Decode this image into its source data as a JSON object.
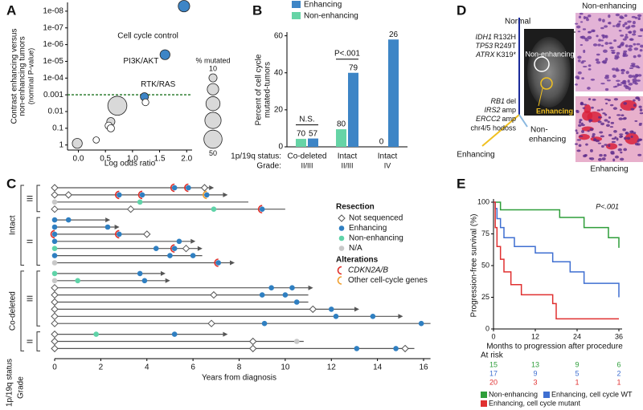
{
  "chart_data": [
    {
      "panel": "A",
      "type": "bubble",
      "ylabel": [
        "Contrast enhancing versus",
        "non-enhancing tumors"
      ],
      "ylabel_note": "(nominal P-value)",
      "xlabel": "Log odds ratio",
      "log_y": true,
      "xlim": [
        -0.2,
        2.1
      ],
      "xticks": [
        {
          "value": 0,
          "label": "0.0"
        },
        {
          "value": 0.5,
          "label": "0.5"
        },
        {
          "value": 1,
          "label": "1.0"
        },
        {
          "value": 1.5,
          "label": "1.5"
        },
        {
          "value": 2,
          "label": "2.0"
        }
      ],
      "ylim": [
        2,
        3e-09
      ],
      "yticks": [
        {
          "value": 1e-08,
          "label": "1e-08"
        },
        {
          "value": 1e-07,
          "label": "1e-07"
        },
        {
          "value": 1e-06,
          "label": "1e-06"
        },
        {
          "value": 1e-05,
          "label": "1e-05"
        },
        {
          "value": 0.0001,
          "label": "1e-04"
        },
        0.001,
        0.01,
        0.1,
        1
      ],
      "threshold": 0.001,
      "threshold_color": "#2e7d32",
      "points": {
        "x": [
          1.95,
          1.6,
          1.22,
          0.72,
          1.24,
          0.6,
          0.56,
          0.6,
          0.33,
          -0.02
        ],
        "values": [
          5e-09,
          4e-06,
          0.0013,
          0.0045,
          0.0028,
          0.04,
          0.07,
          0.1,
          0.5,
          0.8
        ],
        "sizes": [
          20,
          15,
          10,
          55,
          7,
          10,
          8,
          8,
          6,
          15
        ],
        "labels": [
          "Cell cycle control",
          "PI3K/AKT",
          "RTK/RAS",
          null,
          null,
          null,
          null,
          null,
          null,
          null
        ],
        "colors": [
          "#3d85c6",
          "#3d85c6",
          "#3d85c6",
          "#d9d9d9",
          "#ffffff",
          "#d9d9d9",
          "#ffffff",
          "#ffffff",
          "#ffffff",
          "#d9d9d9"
        ]
      },
      "size_legend": {
        "title": "% mutated",
        "values": [
          10,
          20,
          30,
          40,
          50
        ],
        "labels": [
          10,
          null,
          null,
          null,
          50
        ]
      }
    },
    {
      "panel": "B",
      "type": "bar",
      "ylabel": [
        "Percent of cell cycle",
        "mutated-tumors"
      ],
      "categories": [
        "Co-deleted",
        "Intact",
        "Intact"
      ],
      "grades": [
        "II/III",
        "II/III",
        "IV"
      ],
      "row_labels": [
        "1p/19q status:",
        "Grade:"
      ],
      "series": [
        {
          "name": "Enhancing",
          "color": "#3d85c6",
          "values": [
            4.5,
            40,
            58
          ],
          "n": [
            57,
            79,
            26
          ]
        },
        {
          "name": "Non-enhancing",
          "color": "#66d4a6",
          "values": [
            4.3,
            9.5,
            0
          ],
          "n": [
            70,
            80,
            0
          ]
        }
      ],
      "ylim": [
        0,
        62
      ],
      "yticks": [
        0,
        20,
        40,
        60
      ],
      "annotations": [
        {
          "text": "N.S.",
          "category": 0
        },
        {
          "text": "P<.001",
          "category": 1
        }
      ]
    },
    {
      "panel": "C",
      "type": "swimmer",
      "xlabel": "Years from diagnosis",
      "xlim": [
        0,
        16.3
      ],
      "xticks": [
        0,
        2,
        4,
        6,
        8,
        10,
        12,
        14,
        16
      ],
      "axis_labels": [
        "1p/19q status",
        "Grade"
      ],
      "legend": {
        "resection_title": "Resection",
        "resection": [
          "Not sequenced",
          "Enhancing",
          "Non-enhancing",
          "N/A"
        ],
        "status_colors": [
          "#ffffff",
          "#2f7fc1",
          "#5fd3a8",
          "#c8c8c8"
        ],
        "alterations_title": "Alterations",
        "alterations": [
          "CDKN2A/B",
          "Other cell-cycle genes"
        ],
        "alteration_colors": [
          "#e0302a",
          "#f0a030"
        ]
      },
      "status_groups": [
        {
          "status": "Intact",
          "grade_groups": [
            {
              "grade": "III",
              "rows": [
                {
                  "end": 6.7,
                  "arrow": true,
                  "events": [
                    [
                      0,
                      0
                    ],
                    [
                      5.2,
                      1,
                      0
                    ],
                    [
                      5.8,
                      1,
                      0
                    ],
                    [
                      6.5,
                      0
                    ]
                  ]
                },
                {
                  "end": 7.3,
                  "arrow": true,
                  "events": [
                    [
                      0,
                      0
                    ],
                    [
                      0.6,
                      0
                    ],
                    [
                      2.8,
                      1,
                      0
                    ],
                    [
                      3.8,
                      1,
                      0
                    ],
                    [
                      6.6,
                      1,
                      1
                    ]
                  ]
                },
                {
                  "end": 8.4,
                  "arrow": false,
                  "events": [
                    [
                      0,
                      3
                    ],
                    [
                      3.7,
                      2
                    ]
                  ]
                },
                {
                  "end": 10,
                  "arrow": false,
                  "events": [
                    [
                      0,
                      0
                    ],
                    [
                      3.3,
                      0
                    ],
                    [
                      6.9,
                      2
                    ],
                    [
                      9,
                      1,
                      0
                    ]
                  ]
                }
              ]
            },
            {
              "grade": "II",
              "rows": [
                {
                  "end": 2.2,
                  "arrow": true,
                  "events": [
                    [
                      0,
                      1
                    ],
                    [
                      0.6,
                      1
                    ]
                  ]
                },
                {
                  "end": 2.6,
                  "arrow": true,
                  "events": [
                    [
                      0,
                      1
                    ],
                    [
                      2.3,
                      1
                    ]
                  ]
                },
                {
                  "end": 4.1,
                  "arrow": false,
                  "events": [
                    [
                      0,
                      1,
                      0
                    ],
                    [
                      2.8,
                      1,
                      0
                    ],
                    [
                      4,
                      0
                    ]
                  ]
                },
                {
                  "end": 5.9,
                  "arrow": true,
                  "events": [
                    [
                      0,
                      1
                    ],
                    [
                      5.4,
                      1
                    ]
                  ]
                },
                {
                  "end": 6.2,
                  "arrow": true,
                  "events": [
                    [
                      0,
                      2
                    ],
                    [
                      4.4,
                      1
                    ],
                    [
                      5.2,
                      1,
                      0
                    ],
                    [
                      5.7,
                      0
                    ]
                  ]
                },
                {
                  "end": 6.4,
                  "arrow": false,
                  "events": [
                    [
                      0,
                      1
                    ],
                    [
                      5,
                      1
                    ],
                    [
                      6,
                      1
                    ]
                  ]
                },
                {
                  "end": 7.6,
                  "arrow": true,
                  "events": [
                    [
                      0,
                      3
                    ],
                    [
                      7.1,
                      1,
                      0
                    ]
                  ]
                }
              ]
            }
          ]
        },
        {
          "status": "Co-deleted",
          "grade_groups": [
            {
              "grade": "III",
              "rows": [
                {
                  "end": 4.6,
                  "arrow": true,
                  "events": [
                    [
                      0,
                      2
                    ],
                    [
                      3.7,
                      1
                    ]
                  ]
                },
                {
                  "end": 4.8,
                  "arrow": true,
                  "events": [
                    [
                      0,
                      3
                    ],
                    [
                      1,
                      2
                    ],
                    [
                      3.9,
                      1
                    ]
                  ]
                },
                {
                  "end": 11,
                  "arrow": true,
                  "events": [
                    [
                      0,
                      0
                    ],
                    [
                      9.4,
                      1
                    ],
                    [
                      10.3,
                      1
                    ]
                  ]
                },
                {
                  "end": 11,
                  "arrow": false,
                  "events": [
                    [
                      0,
                      0
                    ],
                    [
                      6.9,
                      0
                    ],
                    [
                      9,
                      1
                    ],
                    [
                      10,
                      1
                    ]
                  ]
                },
                {
                  "end": 11,
                  "arrow": false,
                  "events": [
                    [
                      0,
                      0
                    ],
                    [
                      10.5,
                      1
                    ]
                  ]
                },
                {
                  "end": 13,
                  "arrow": true,
                  "events": [
                    [
                      0,
                      0
                    ],
                    [
                      11.2,
                      0
                    ],
                    [
                      12,
                      1
                    ]
                  ]
                },
                {
                  "end": 14.9,
                  "arrow": true,
                  "events": [
                    [
                      0,
                      0
                    ],
                    [
                      12.2,
                      1
                    ],
                    [
                      13.8,
                      1
                    ]
                  ]
                },
                {
                  "end": 16.3,
                  "arrow": false,
                  "events": [
                    [
                      0,
                      0
                    ],
                    [
                      6.8,
                      0
                    ],
                    [
                      9.1,
                      1
                    ],
                    [
                      15.9,
                      1
                    ]
                  ]
                }
              ]
            },
            {
              "grade": "II",
              "rows": [
                {
                  "end": 7.3,
                  "arrow": true,
                  "events": [
                    [
                      0,
                      0
                    ],
                    [
                      1.8,
                      2
                    ],
                    [
                      5.2,
                      1
                    ]
                  ]
                },
                {
                  "end": 10.8,
                  "arrow": false,
                  "events": [
                    [
                      0,
                      0
                    ],
                    [
                      8.6,
                      0
                    ],
                    [
                      10.5,
                      3
                    ]
                  ]
                },
                {
                  "end": 15.6,
                  "arrow": false,
                  "events": [
                    [
                      0,
                      0
                    ],
                    [
                      8.6,
                      0
                    ],
                    [
                      13.1,
                      1
                    ],
                    [
                      14.8,
                      1
                    ],
                    [
                      15.2,
                      0
                    ]
                  ]
                }
              ]
            }
          ]
        }
      ]
    },
    {
      "panel": "E",
      "type": "km",
      "ylabel": "Progression-free survival (%)",
      "xlabel": "Months to progression after procedure",
      "xlim": [
        0,
        36
      ],
      "xticks": [
        0,
        12,
        24,
        36
      ],
      "ylim": [
        0,
        100
      ],
      "yticks": [
        0,
        25,
        50,
        75,
        100
      ],
      "annotation": "P<.001",
      "at_risk_title": "At risk",
      "series": [
        {
          "name": "Non-enhancing",
          "color": "#2e9e3a",
          "x": [
            0,
            2,
            19,
            26,
            33,
            36
          ],
          "values": [
            100,
            94,
            88,
            80,
            72,
            64
          ],
          "at_risk": [
            15,
            13,
            9,
            6
          ]
        },
        {
          "name": "Enhancing, cell cycle WT",
          "color": "#3f6fd1",
          "x": [
            0,
            0.5,
            1,
            2,
            3,
            6,
            12,
            17,
            22,
            26,
            36
          ],
          "values": [
            100,
            95,
            87,
            80,
            72,
            65,
            60,
            53,
            45,
            36,
            25
          ],
          "at_risk": [
            17,
            9,
            5,
            2
          ]
        },
        {
          "name": "Enhancing, cell cycle mutant",
          "color": "#e03030",
          "x": [
            0,
            0.5,
            1,
            2,
            3,
            5,
            8,
            17,
            18,
            36
          ],
          "values": [
            100,
            80,
            65,
            55,
            45,
            35,
            27,
            20,
            8,
            8
          ],
          "at_risk": [
            20,
            3,
            1,
            1
          ]
        }
      ]
    }
  ],
  "diagram": {
    "panel": "D",
    "root": "Normal",
    "trunk_mutations": [
      {
        "gene": "IDH1",
        "change": "R132H"
      },
      {
        "gene": "TP53",
        "change": "R249T"
      },
      {
        "gene": "ATRX",
        "change": "K319*"
      }
    ],
    "branch_alterations": [
      {
        "gene": "RB1",
        "change": "del"
      },
      {
        "gene": "IRS2",
        "change": "amp"
      },
      {
        "gene": "ERCC2",
        "change": "amp"
      },
      {
        "text": "chr4/5 hodoss"
      }
    ],
    "leaf_enhancing": "Enhancing",
    "leaf_non_enhancing": [
      "Non-",
      "enhancing"
    ],
    "mri_labels": [
      "Non-enhancing",
      "Enhancing"
    ],
    "histology_labels": [
      "Non-enhancing",
      "Enhancing"
    ]
  }
}
